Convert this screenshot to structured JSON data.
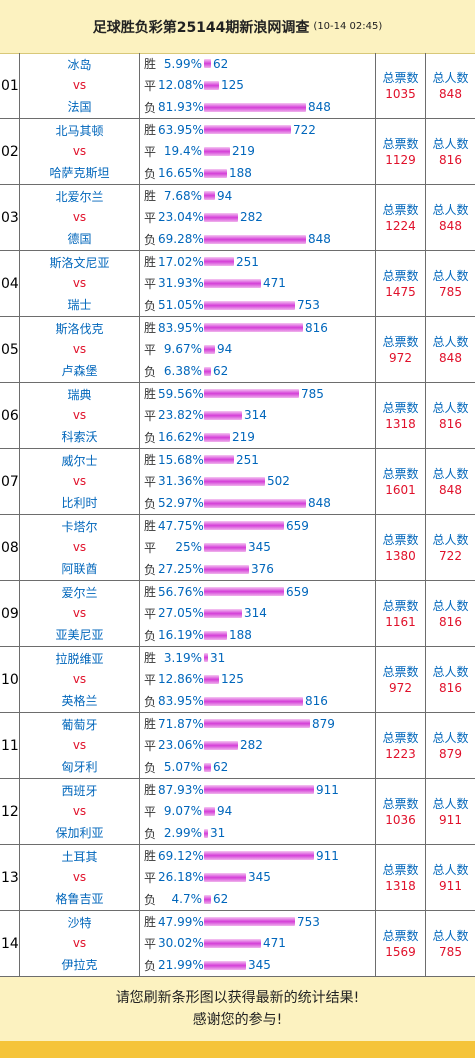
{
  "header": {
    "title": "足球胜负彩第25144期新浪网调查",
    "timestamp": "(10-14 02:45)"
  },
  "labels": {
    "win": "胜",
    "draw": "平",
    "lose": "负",
    "vs": "vs",
    "total_votes": "总票数",
    "total_people": "总人数"
  },
  "colors": {
    "bar": "#d43ed8",
    "value_red": "#e0102a",
    "value_blue": "#0066bb",
    "header_bg": "#fcf2c0"
  },
  "matches": [
    {
      "no": "01",
      "home": "冰岛",
      "away": "法国",
      "win_pct": "5.99%",
      "win": 62,
      "draw_pct": "12.08%",
      "draw": 125,
      "lose_pct": "81.93%",
      "lose": 848,
      "total_votes": 1035,
      "total_people": 848
    },
    {
      "no": "02",
      "home": "北马其顿",
      "away": "哈萨克斯坦",
      "win_pct": "63.95%",
      "win": 722,
      "draw_pct": "19.4%",
      "draw": 219,
      "lose_pct": "16.65%",
      "lose": 188,
      "total_votes": 1129,
      "total_people": 816
    },
    {
      "no": "03",
      "home": "北爱尔兰",
      "away": "德国",
      "win_pct": "7.68%",
      "win": 94,
      "draw_pct": "23.04%",
      "draw": 282,
      "lose_pct": "69.28%",
      "lose": 848,
      "total_votes": 1224,
      "total_people": 848
    },
    {
      "no": "04",
      "home": "斯洛文尼亚",
      "away": "瑞士",
      "win_pct": "17.02%",
      "win": 251,
      "draw_pct": "31.93%",
      "draw": 471,
      "lose_pct": "51.05%",
      "lose": 753,
      "total_votes": 1475,
      "total_people": 785
    },
    {
      "no": "05",
      "home": "斯洛伐克",
      "away": "卢森堡",
      "win_pct": "83.95%",
      "win": 816,
      "draw_pct": "9.67%",
      "draw": 94,
      "lose_pct": "6.38%",
      "lose": 62,
      "total_votes": 972,
      "total_people": 848
    },
    {
      "no": "06",
      "home": "瑞典",
      "away": "科索沃",
      "win_pct": "59.56%",
      "win": 785,
      "draw_pct": "23.82%",
      "draw": 314,
      "lose_pct": "16.62%",
      "lose": 219,
      "total_votes": 1318,
      "total_people": 816
    },
    {
      "no": "07",
      "home": "威尔士",
      "away": "比利时",
      "win_pct": "15.68%",
      "win": 251,
      "draw_pct": "31.36%",
      "draw": 502,
      "lose_pct": "52.97%",
      "lose": 848,
      "total_votes": 1601,
      "total_people": 848
    },
    {
      "no": "08",
      "home": "卡塔尔",
      "away": "阿联酋",
      "win_pct": "47.75%",
      "win": 659,
      "draw_pct": "25%",
      "draw": 345,
      "lose_pct": "27.25%",
      "lose": 376,
      "total_votes": 1380,
      "total_people": 722
    },
    {
      "no": "09",
      "home": "爱尔兰",
      "away": "亚美尼亚",
      "win_pct": "56.76%",
      "win": 659,
      "draw_pct": "27.05%",
      "draw": 314,
      "lose_pct": "16.19%",
      "lose": 188,
      "total_votes": 1161,
      "total_people": 816
    },
    {
      "no": "10",
      "home": "拉脱维亚",
      "away": "英格兰",
      "win_pct": "3.19%",
      "win": 31,
      "draw_pct": "12.86%",
      "draw": 125,
      "lose_pct": "83.95%",
      "lose": 816,
      "total_votes": 972,
      "total_people": 816
    },
    {
      "no": "11",
      "home": "葡萄牙",
      "away": "匈牙利",
      "win_pct": "71.87%",
      "win": 879,
      "draw_pct": "23.06%",
      "draw": 282,
      "lose_pct": "5.07%",
      "lose": 62,
      "total_votes": 1223,
      "total_people": 879
    },
    {
      "no": "12",
      "home": "西班牙",
      "away": "保加利亚",
      "win_pct": "87.93%",
      "win": 911,
      "draw_pct": "9.07%",
      "draw": 94,
      "lose_pct": "2.99%",
      "lose": 31,
      "total_votes": 1036,
      "total_people": 911
    },
    {
      "no": "13",
      "home": "土耳其",
      "away": "格鲁吉亚",
      "win_pct": "69.12%",
      "win": 911,
      "draw_pct": "26.18%",
      "draw": 345,
      "lose_pct": "4.7%",
      "lose": 62,
      "total_votes": 1318,
      "total_people": 911
    },
    {
      "no": "14",
      "home": "沙特",
      "away": "伊拉克",
      "win_pct": "47.99%",
      "win": 753,
      "draw_pct": "30.02%",
      "draw": 471,
      "lose_pct": "21.99%",
      "lose": 345,
      "total_votes": 1569,
      "total_people": 785
    }
  ],
  "footer": {
    "line1": "请您刷新条形图以获得最新的统计结果!",
    "line2": "感谢您的参与!"
  }
}
